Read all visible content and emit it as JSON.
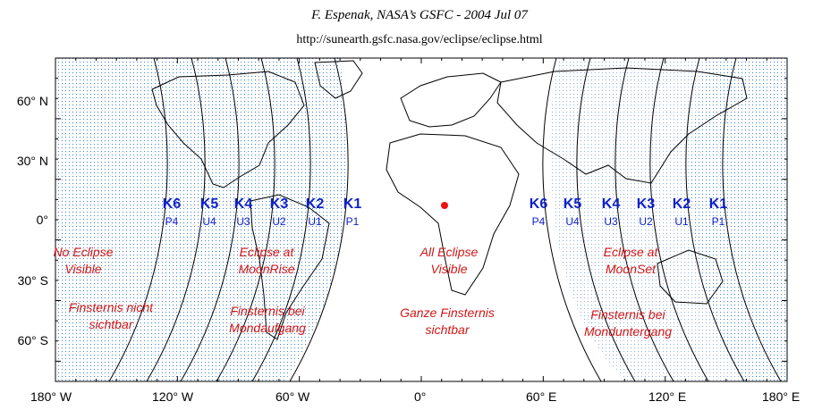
{
  "header": {
    "title": "F. Espenak, NASA’s GSFC - 2004 Jul 07",
    "url": "http://sunearth.gsfc.nasa.gov/eclipse/eclipse.html"
  },
  "axes": {
    "lat_labels": [
      "60° N",
      "30° N",
      "0°",
      "30° S",
      "60° S"
    ],
    "lon_labels": [
      "180° W",
      "120° W",
      "60° W",
      "0°",
      "60° E",
      "120° E",
      "180° E"
    ]
  },
  "west_contacts": [
    {
      "k": "K6",
      "p": "P4"
    },
    {
      "k": "K5",
      "p": "U4"
    },
    {
      "k": "K4",
      "p": "U3"
    },
    {
      "k": "K3",
      "p": "U2"
    },
    {
      "k": "K2",
      "p": "U1"
    },
    {
      "k": "K1",
      "p": "P1"
    }
  ],
  "east_contacts": [
    {
      "k": "K6",
      "p": "P4"
    },
    {
      "k": "K5",
      "p": "U4"
    },
    {
      "k": "K4",
      "p": "U3"
    },
    {
      "k": "K3",
      "p": "U2"
    },
    {
      "k": "K2",
      "p": "U1"
    },
    {
      "k": "K1",
      "p": "P1"
    }
  ],
  "zones": {
    "no_eclipse": {
      "en1": "No Eclipse",
      "en2": "Visible",
      "de1": "Finsternis nicht",
      "de2": "sichtbar"
    },
    "moonrise": {
      "en1": "Eclipse at",
      "en2": "MoonRise",
      "de1": "Finsternis bei",
      "de2": "Mondaufgang"
    },
    "all_visible": {
      "en1": "All Eclipse",
      "en2": "Visible",
      "de1": "Ganze Finsternis",
      "de2": "sichtbar"
    },
    "moonset": {
      "en1": "Eclipse at",
      "en2": "MoonSet",
      "de1": "Finsternis bei",
      "de2": "Monduntergang"
    }
  },
  "colors": {
    "zone_dots": "#3a7fd0",
    "contact_blue": "#1020c8",
    "zone_text": "#d01818",
    "marker": "#ee1111"
  }
}
